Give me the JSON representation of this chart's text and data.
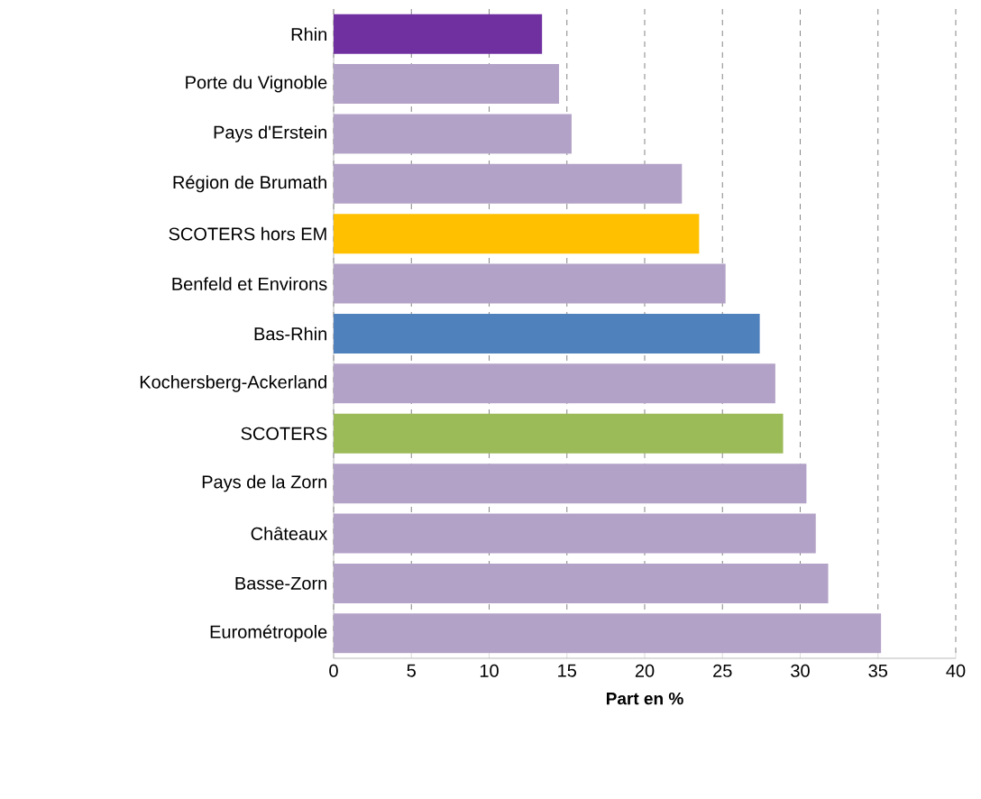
{
  "chart_data": {
    "type": "bar",
    "orientation": "horizontal",
    "xlabel": "Part en %",
    "categories": [
      "Rhin",
      "Porte du Vignoble",
      "Pays d'Erstein",
      "Région de Brumath",
      "SCOTERS hors EM",
      "Benfeld et Environs",
      "Bas-Rhin",
      "Kochersberg-Ackerland",
      "SCOTERS",
      "Pays de la Zorn",
      "Châteaux",
      "Basse-Zorn",
      "Eurométropole"
    ],
    "values": [
      13.4,
      14.5,
      15.3,
      22.4,
      23.5,
      25.2,
      27.4,
      28.4,
      28.9,
      30.4,
      31.0,
      31.8,
      35.2
    ],
    "colors": [
      "#7030a0",
      "#b3a2c7",
      "#b3a2c7",
      "#b3a2c7",
      "#ffc000",
      "#b3a2c7",
      "#4f81bd",
      "#b3a2c7",
      "#9bbb59",
      "#b3a2c7",
      "#b3a2c7",
      "#b3a2c7",
      "#b3a2c7"
    ],
    "xlim": [
      0,
      40
    ],
    "xticks": [
      0,
      5,
      10,
      15,
      20,
      25,
      30,
      35,
      40
    ],
    "grid": "x"
  }
}
